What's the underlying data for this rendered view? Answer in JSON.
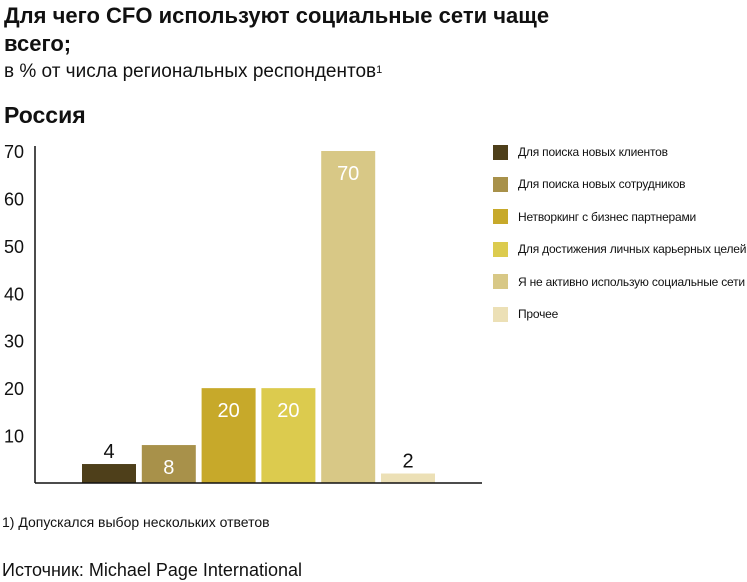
{
  "header": {
    "title": "Для чего CFO используют социальные сети чаще всего;",
    "subtitle": "в % от числа региональных респондентов",
    "subtitle_sup": "1",
    "region": "Россия"
  },
  "chart_data": {
    "type": "bar",
    "ylim": [
      0,
      70
    ],
    "yticks": [
      10,
      20,
      30,
      40,
      50,
      60,
      70
    ],
    "grid": false,
    "legend_position": "right",
    "series": [
      {
        "name": "Для поиска новых клиентов",
        "value": 4,
        "color": "#4e3f1a",
        "label_color": "#111111",
        "label_outside": true
      },
      {
        "name": "Для поиска новых сотрудников",
        "value": 8,
        "color": "#a8914a",
        "label_color": "#ffffff",
        "label_outside": false
      },
      {
        "name": "Нетворкинг с бизнес партнерами",
        "value": 20,
        "color": "#c7a92a",
        "label_color": "#ffffff",
        "label_outside": false
      },
      {
        "name": "Для достижения личных карьерных целей",
        "value": 20,
        "color": "#dccb4e",
        "label_color": "#ffffff",
        "label_outside": false
      },
      {
        "name": "Я не активно использую социальные сети",
        "value": 70,
        "color": "#d8c886",
        "label_color": "#ffffff",
        "label_outside": false
      },
      {
        "name": "Прочее",
        "value": 2,
        "color": "#ece0b6",
        "label_color": "#111111",
        "label_outside": true
      }
    ]
  },
  "footer": {
    "footnote": "1) Допускался выбор нескольких ответов",
    "source": "Источник: Michael Page International"
  }
}
